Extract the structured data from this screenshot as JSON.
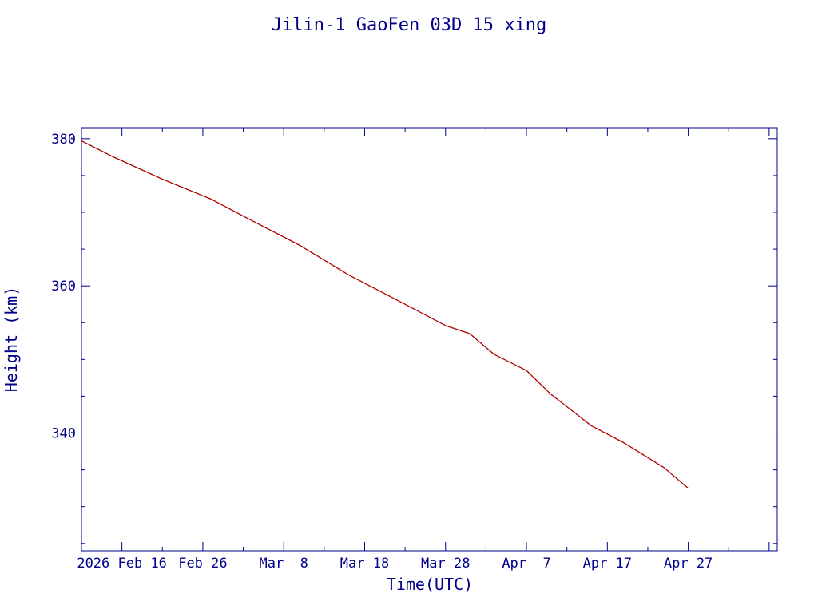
{
  "chart_data": {
    "type": "line",
    "title": "Jilin-1 GaoFen 03D 15 xing",
    "xlabel": "Time(UTC)",
    "ylabel": "Height (km)",
    "xlim": [
      "2026-02-01",
      "2026-04-28"
    ],
    "ylim": [
      324,
      381.5
    ],
    "x_ticks": [
      {
        "date": "2026-02-06",
        "label": "2026 Feb 16"
      },
      {
        "date": "2026-02-16",
        "label": "Feb 26"
      },
      {
        "date": "2026-02-26",
        "label": "Mar  8"
      },
      {
        "date": "2026-03-08",
        "label": "Mar 18"
      },
      {
        "date": "2026-03-18",
        "label": "Mar 28"
      },
      {
        "date": "2026-03-28",
        "label": "Apr  7"
      },
      {
        "date": "2026-04-07",
        "label": "Apr 17"
      },
      {
        "date": "2026-04-17",
        "label": "Apr 27"
      },
      {
        "date": "2026-04-27",
        "label": ""
      }
    ],
    "y_ticks": [
      340,
      360,
      380
    ],
    "grid": false,
    "series": [
      {
        "color": "#b00000",
        "x": [
          "2026-02-01",
          "2026-02-05",
          "2026-02-11",
          "2026-02-17",
          "2026-02-22",
          "2026-02-28",
          "2026-03-06",
          "2026-03-13",
          "2026-03-18",
          "2026-03-21",
          "2026-03-24",
          "2026-03-28",
          "2026-03-31",
          "2026-04-05",
          "2026-04-09",
          "2026-04-14",
          "2026-04-17"
        ],
        "values": [
          379.7,
          377.5,
          374.5,
          371.8,
          368.9,
          365.5,
          361.5,
          357.5,
          354.6,
          353.5,
          350.7,
          348.5,
          345.3,
          341.0,
          338.7,
          335.3,
          332.5
        ]
      }
    ]
  }
}
